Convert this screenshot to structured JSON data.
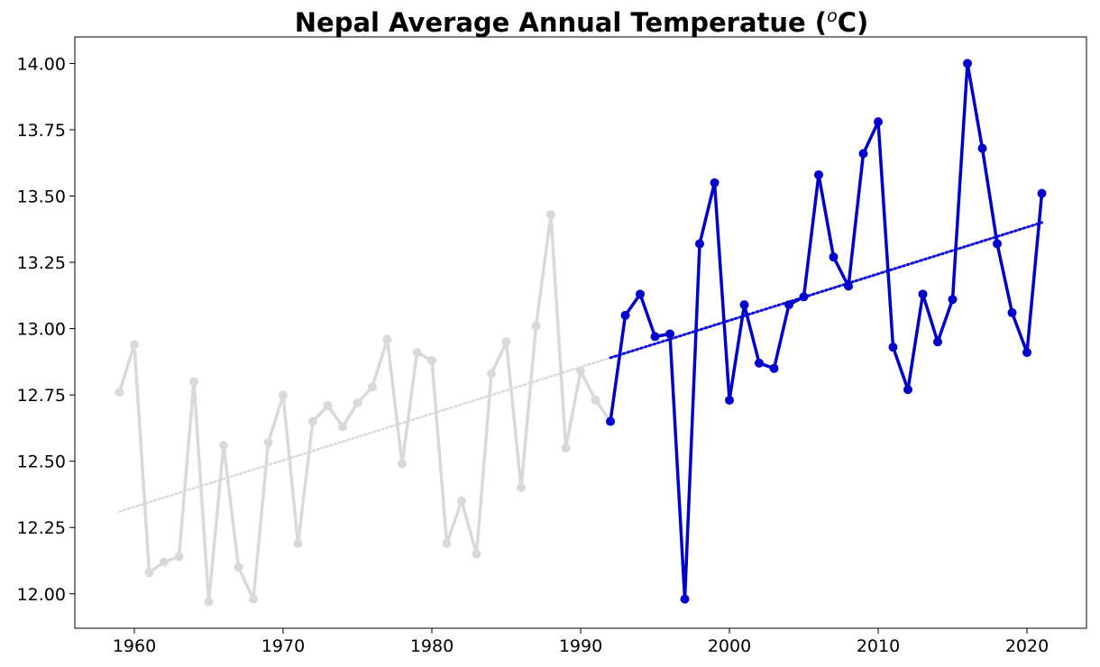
{
  "chart_data": {
    "type": "line",
    "title": "Nepal Average Annual Temperatue (",
    "title_sup": "o",
    "title_tail": "C)",
    "xlabel": "",
    "ylabel": "",
    "xlim": [
      1956,
      2024
    ],
    "ylim": [
      11.87,
      14.1
    ],
    "xticks": [
      1960,
      1970,
      1980,
      1990,
      2000,
      2010,
      2020
    ],
    "xtick_labels": [
      "1960",
      "1970",
      "1980",
      "1990",
      "2000",
      "2010",
      "2020"
    ],
    "yticks": [
      12.0,
      12.25,
      12.5,
      12.75,
      13.0,
      13.25,
      13.5,
      13.75,
      14.0
    ],
    "ytick_labels": [
      "12.00",
      "12.25",
      "12.50",
      "12.75",
      "13.00",
      "13.25",
      "13.50",
      "13.75",
      "14.00"
    ],
    "grid": false,
    "series": [
      {
        "color": "#d9d9d9",
        "x": [
          1959,
          1960,
          1961,
          1962,
          1963,
          1964,
          1965,
          1966,
          1967,
          1968,
          1969,
          1970,
          1971,
          1972,
          1973,
          1974,
          1975,
          1976,
          1977,
          1978,
          1979,
          1980,
          1981,
          1982,
          1983,
          1984,
          1985,
          1986,
          1987,
          1988,
          1989,
          1990,
          1991,
          1992
        ],
        "values": [
          12.76,
          12.94,
          12.08,
          12.12,
          12.14,
          12.8,
          11.97,
          12.56,
          12.1,
          11.98,
          12.57,
          12.75,
          12.19,
          12.65,
          12.71,
          12.63,
          12.72,
          12.78,
          12.96,
          12.49,
          12.91,
          12.88,
          12.19,
          12.35,
          12.15,
          12.83,
          12.95,
          12.4,
          13.01,
          13.43,
          12.55,
          12.84,
          12.73,
          12.65
        ],
        "trend": [
          12.31,
          12.89
        ]
      },
      {
        "color": "#0000cd",
        "trend_color": "#1010dd",
        "x": [
          1992,
          1993,
          1994,
          1995,
          1996,
          1997,
          1998,
          1999,
          2000,
          2001,
          2002,
          2003,
          2004,
          2005,
          2006,
          2007,
          2008,
          2009,
          2010,
          2011,
          2012,
          2013,
          2014,
          2015,
          2016,
          2017,
          2018,
          2019,
          2020,
          2021
        ],
        "values": [
          12.65,
          13.05,
          13.13,
          12.97,
          12.98,
          11.98,
          13.32,
          13.55,
          12.73,
          13.09,
          12.87,
          12.85,
          13.09,
          13.12,
          13.58,
          13.27,
          13.16,
          13.66,
          13.78,
          12.93,
          12.77,
          13.13,
          12.95,
          13.11,
          14.0,
          13.68,
          13.32,
          13.06,
          12.91,
          13.51
        ],
        "trend": [
          12.89,
          13.4
        ]
      }
    ]
  }
}
